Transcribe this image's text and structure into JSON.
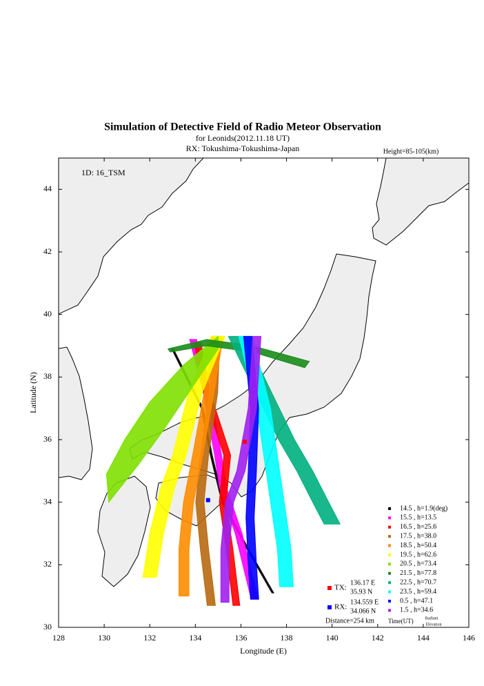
{
  "chart_data": {
    "type": "map-swath",
    "title": "Simulation of Detective Field of Radio Meteor Observation",
    "subtitle": "for Leonids(2012.11.18 UT)",
    "receiver_label": "RX: Tokushima-Tokushima-Japan",
    "height_label": "Height=85-105(km)",
    "id_label": "1D: 16_TSM",
    "x_label": "Longitude (E)",
    "y_label": "Latitude (N)",
    "xlim": [
      128,
      146
    ],
    "ylim": [
      30,
      45
    ],
    "xticks": [
      128,
      130,
      132,
      134,
      136,
      138,
      140,
      142,
      144,
      146
    ],
    "yticks": [
      30,
      32,
      34,
      36,
      38,
      40,
      42,
      44
    ],
    "legend_footer": "Time(UT)",
    "legend_footer_note": [
      "Radiant",
      "Elevation"
    ],
    "series": [
      {
        "name": "14.5 ,  h=1.9(deg)",
        "color": "#000000",
        "lon": [
          132.96,
          134.26,
          134.66,
          135.16,
          136.26,
          137.36,
          137.44,
          136.34,
          135.24,
          134.74,
          134.34,
          133.04
        ],
        "lat": [
          38.9,
          37.0,
          35.5,
          34.0,
          32.5,
          31.1,
          31.1,
          32.5,
          34.0,
          35.5,
          37.0,
          38.9
        ]
      },
      {
        "name": "15.5 ,  h=13.5",
        "color": "#ff00ff",
        "lon": [
          133.75,
          134.35,
          134.85,
          135.05,
          135.75,
          136.45,
          136.75,
          136.05,
          135.35,
          135.15,
          134.65,
          134.05
        ],
        "lat": [
          39.2,
          37.5,
          35.5,
          34.5,
          33.0,
          30.9,
          30.9,
          33.0,
          34.5,
          35.5,
          37.5,
          39.2
        ]
      },
      {
        "name": "16.5 ,  h=25.6",
        "color": "#ff0000",
        "lon": [
          133.95,
          134.35,
          135.25,
          135.05,
          135.35,
          135.65,
          135.95,
          135.65,
          135.35,
          135.55,
          134.65,
          134.25
        ],
        "lat": [
          39.1,
          37.5,
          35.5,
          34.0,
          32.5,
          30.7,
          30.7,
          32.5,
          34.0,
          35.5,
          37.5,
          39.1
        ]
      },
      {
        "name": "17.5 ,  h=38.0",
        "color": "#b8690f",
        "lon": [
          134.72,
          134.62,
          134.22,
          134.02,
          134.22,
          134.52,
          134.88,
          134.58,
          134.38,
          134.58,
          134.98,
          135.08
        ],
        "lat": [
          39.3,
          37.5,
          35.5,
          34.0,
          32.5,
          30.7,
          30.7,
          32.5,
          34.0,
          35.5,
          37.5,
          39.3
        ]
      },
      {
        "name": "18.5 ,  h=50.4",
        "color": "#ff8c00",
        "lon": [
          134.78,
          134.38,
          133.88,
          133.48,
          133.28,
          133.28,
          133.72,
          133.72,
          133.92,
          134.32,
          134.82,
          135.22
        ],
        "lat": [
          39.3,
          37.5,
          35.5,
          34.0,
          32.5,
          31.0,
          31.0,
          32.5,
          34.0,
          35.5,
          37.5,
          39.3
        ]
      },
      {
        "name": "19.5 ,  h=62.6",
        "color": "#ffff00",
        "lon": [
          134.7,
          133.7,
          133.0,
          132.5,
          132.0,
          131.7,
          132.3,
          132.6,
          133.1,
          133.6,
          134.3,
          135.3
        ],
        "lat": [
          39.3,
          37.5,
          35.5,
          34.5,
          33.0,
          31.6,
          31.6,
          33.0,
          34.5,
          35.5,
          37.5,
          39.3
        ]
      },
      {
        "name": "20.5 ,  h=73.4",
        "color": "#7fe000",
        "lon": [
          135.0,
          133.5,
          132.0,
          130.9,
          130.1,
          130.2,
          131.5,
          132.6,
          133.8,
          135.0
        ],
        "lat": [
          39.3,
          38.4,
          37.2,
          36.0,
          34.9,
          34.0,
          35.2,
          36.3,
          37.6,
          38.9
        ]
      },
      {
        "name": "21.5 ,  h=77.8",
        "color": "#1a8c1a",
        "lon": [
          132.8,
          134.5,
          136.5,
          139.0,
          138.8,
          136.5,
          134.5,
          132.9
        ],
        "lat": [
          38.9,
          39.2,
          39.0,
          38.5,
          38.3,
          38.8,
          39.0,
          38.8
        ]
      },
      {
        "name": "22.5 ,  h=70.7",
        "color": "#00b080",
        "lon": [
          135.45,
          136.65,
          137.65,
          138.45,
          139.15,
          139.65,
          140.35,
          139.85,
          139.15,
          138.35,
          137.35,
          136.15
        ],
        "lat": [
          39.3,
          37.5,
          36.0,
          35.0,
          34.0,
          33.3,
          33.3,
          34.0,
          35.0,
          36.0,
          37.5,
          39.3
        ]
      },
      {
        "name": "23.5 ,  h=59.4",
        "color": "#00ffff",
        "lon": [
          135.9,
          136.7,
          137.0,
          137.3,
          137.6,
          137.7,
          138.3,
          138.2,
          137.9,
          137.6,
          137.3,
          136.5
        ],
        "lat": [
          39.3,
          37.0,
          35.5,
          34.0,
          32.5,
          31.3,
          31.3,
          32.5,
          34.0,
          35.5,
          37.0,
          39.3
        ]
      },
      {
        "name": "0.5 ,  h=47.1",
        "color": "#0000ff",
        "lon": [
          136.12,
          136.42,
          136.32,
          136.22,
          136.32,
          136.42,
          136.78,
          136.68,
          136.58,
          136.68,
          136.78,
          136.48
        ],
        "lat": [
          39.3,
          37.0,
          35.0,
          33.5,
          32.0,
          30.9,
          30.9,
          32.0,
          33.5,
          35.0,
          37.0,
          39.3
        ]
      },
      {
        "name": "1.5 ,  h=34.6",
        "color": "#a020f0",
        "lon": [
          136.52,
          136.32,
          135.82,
          135.32,
          135.12,
          135.12,
          135.48,
          135.48,
          135.68,
          136.18,
          136.68,
          136.88
        ],
        "lat": [
          39.3,
          37.0,
          35.0,
          34.0,
          32.5,
          30.8,
          30.8,
          32.5,
          34.0,
          35.0,
          37.0,
          39.3
        ]
      }
    ],
    "stations": [
      {
        "label": "TX:",
        "lon_label": "136.17 E",
        "lat_label": "35.93 N",
        "lon": 136.17,
        "lat": 35.93,
        "color": "#ff0000"
      },
      {
        "label": "RX:",
        "lon_label": "134.559 E",
        "lat_label": "34.066 N",
        "lon": 134.559,
        "lat": 34.066,
        "color": "#0000ff"
      }
    ],
    "distance_label": "Distance=254 km"
  }
}
